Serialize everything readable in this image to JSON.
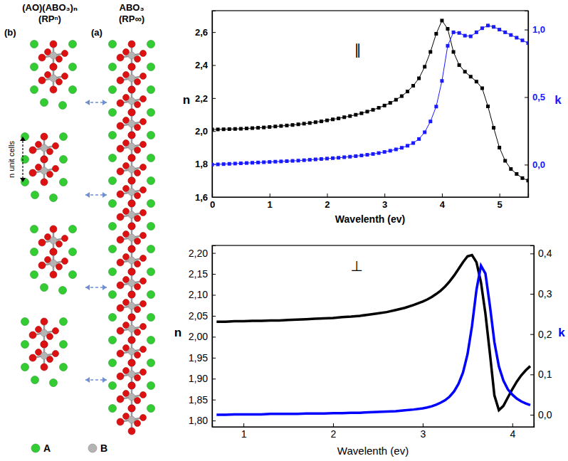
{
  "diagram": {
    "columns": [
      {
        "letter": "(b)",
        "formula": "(AO)(ABO₃)ₙ",
        "label": "(RPⁿ)"
      },
      {
        "letter": "(a)",
        "formula": "ABO₃",
        "label": "(RP∞)"
      }
    ],
    "span_label": "n unit cells",
    "legend": [
      {
        "name": "A",
        "color": "#33cc33"
      },
      {
        "name": "B",
        "color": "#b4b4b4"
      }
    ]
  },
  "chart_data": [
    {
      "type": "line",
      "annotations": [
        "∥"
      ],
      "x_label": "Wavelenth (ev)",
      "y_label": "n",
      "y2_label": "k",
      "x": [
        0,
        0.1,
        0.2,
        0.3,
        0.4,
        0.5,
        0.6,
        0.7,
        0.8,
        0.9,
        1.0,
        1.1,
        1.2,
        1.3,
        1.4,
        1.5,
        1.6,
        1.7,
        1.8,
        1.9,
        2.0,
        2.1,
        2.2,
        2.3,
        2.4,
        2.5,
        2.6,
        2.7,
        2.8,
        2.9,
        3.0,
        3.1,
        3.2,
        3.3,
        3.4,
        3.5,
        3.6,
        3.7,
        3.8,
        3.9,
        4.0,
        4.1,
        4.2,
        4.3,
        4.4,
        4.5,
        4.6,
        4.7,
        4.8,
        4.9,
        5.0,
        5.1,
        5.2,
        5.3,
        5.4,
        5.5
      ],
      "xlim": [
        0,
        5.5
      ],
      "xticks": [
        0,
        1,
        2,
        3,
        4,
        5
      ],
      "ylim": [
        1.6,
        2.73
      ],
      "yticks": [
        {
          "value": 1.6,
          "label": "1,6"
        },
        {
          "value": 1.8,
          "label": "1,8"
        },
        {
          "value": 2.0,
          "label": "2,0"
        },
        {
          "value": 2.2,
          "label": "2,2"
        },
        {
          "value": 2.4,
          "label": "2,4"
        },
        {
          "value": 2.6,
          "label": "2,6"
        }
      ],
      "y2lim": [
        -0.24,
        1.14
      ],
      "y2ticks": [
        {
          "value": 0,
          "label": "0,0"
        },
        {
          "value": 0.5,
          "label": "0,5"
        },
        {
          "value": 1.0,
          "label": "1,0"
        }
      ],
      "series": [
        {
          "color": "#000000",
          "marker": "square",
          "values": [
            2.01,
            2.01,
            2.011,
            2.012,
            2.013,
            2.014,
            2.016,
            2.018,
            2.02,
            2.022,
            2.025,
            2.028,
            2.031,
            2.034,
            2.037,
            2.041,
            2.045,
            2.049,
            2.054,
            2.059,
            2.065,
            2.071,
            2.077,
            2.084,
            2.091,
            2.099,
            2.108,
            2.118,
            2.129,
            2.141,
            2.155,
            2.171,
            2.19,
            2.212,
            2.24,
            2.275,
            2.32,
            2.39,
            2.48,
            2.59,
            2.67,
            2.62,
            2.48,
            2.4,
            2.36,
            2.33,
            2.3,
            2.26,
            2.15,
            2.02,
            1.9,
            1.82,
            1.77,
            1.74,
            1.715,
            1.7
          ]
        },
        {
          "color": "#1a1aff",
          "marker": "square",
          "axis": "y2",
          "values": [
            0.0,
            0.002,
            0.004,
            0.006,
            0.008,
            0.01,
            0.012,
            0.014,
            0.016,
            0.018,
            0.02,
            0.022,
            0.024,
            0.026,
            0.028,
            0.03,
            0.033,
            0.036,
            0.039,
            0.042,
            0.045,
            0.048,
            0.051,
            0.055,
            0.059,
            0.063,
            0.068,
            0.073,
            0.079,
            0.086,
            0.094,
            0.103,
            0.113,
            0.125,
            0.14,
            0.16,
            0.19,
            0.24,
            0.32,
            0.43,
            0.62,
            0.88,
            0.98,
            0.975,
            0.955,
            0.95,
            0.98,
            1.01,
            1.03,
            1.02,
            1.0,
            0.98,
            0.96,
            0.94,
            0.92,
            0.9
          ]
        }
      ]
    },
    {
      "type": "line",
      "annotations": [
        "⊥"
      ],
      "x_label": "Wavelenth (ev)",
      "y_label": "n",
      "y2_label": "k",
      "x": [
        0.7,
        0.8,
        0.9,
        1.0,
        1.1,
        1.2,
        1.3,
        1.4,
        1.5,
        1.6,
        1.7,
        1.8,
        1.9,
        2.0,
        2.1,
        2.2,
        2.3,
        2.4,
        2.5,
        2.6,
        2.7,
        2.8,
        2.9,
        3.0,
        3.05,
        3.1,
        3.15,
        3.2,
        3.25,
        3.3,
        3.35,
        3.4,
        3.45,
        3.5,
        3.55,
        3.6,
        3.65,
        3.7,
        3.75,
        3.8,
        3.85,
        3.9,
        3.95,
        4.0,
        4.05,
        4.1,
        4.15,
        4.2
      ],
      "xlim": [
        0.65,
        4.24
      ],
      "xticks": [
        1,
        2,
        3,
        4
      ],
      "ylim": [
        1.785,
        2.218
      ],
      "yticks": [
        {
          "value": 1.8,
          "label": "1,80"
        },
        {
          "value": 1.85,
          "label": "1,85"
        },
        {
          "value": 1.9,
          "label": "1,90"
        },
        {
          "value": 1.95,
          "label": "1,95"
        },
        {
          "value": 2.0,
          "label": "2,00"
        },
        {
          "value": 2.05,
          "label": "2,05"
        },
        {
          "value": 2.1,
          "label": "2,10"
        },
        {
          "value": 2.15,
          "label": "2,15"
        },
        {
          "value": 2.2,
          "label": "2,20"
        }
      ],
      "y2lim": [
        -0.03,
        0.42
      ],
      "y2ticks": [
        {
          "value": 0,
          "label": "0,0"
        },
        {
          "value": 0.1,
          "label": "0,1"
        },
        {
          "value": 0.2,
          "label": "0,2"
        },
        {
          "value": 0.3,
          "label": "0,3"
        },
        {
          "value": 0.4,
          "label": "0,4"
        }
      ],
      "series": [
        {
          "color": "#000000",
          "line_style": "solid",
          "values": [
            2.036,
            2.036,
            2.037,
            2.037,
            2.038,
            2.038,
            2.039,
            2.039,
            2.04,
            2.041,
            2.042,
            2.043,
            2.044,
            2.045,
            2.047,
            2.048,
            2.05,
            2.053,
            2.056,
            2.059,
            2.064,
            2.069,
            2.076,
            2.084,
            2.089,
            2.095,
            2.102,
            2.11,
            2.12,
            2.132,
            2.146,
            2.162,
            2.178,
            2.192,
            2.195,
            2.178,
            2.13,
            2.055,
            1.96,
            1.86,
            1.825,
            1.835,
            1.855,
            1.875,
            1.893,
            1.908,
            1.92,
            1.93
          ]
        },
        {
          "color": "#0000ff",
          "line_style": "solid",
          "axis": "y2",
          "values": [
            0.0,
            0.0,
            0.001,
            0.001,
            0.001,
            0.001,
            0.002,
            0.002,
            0.002,
            0.002,
            0.003,
            0.003,
            0.003,
            0.004,
            0.004,
            0.005,
            0.005,
            0.006,
            0.007,
            0.008,
            0.009,
            0.011,
            0.013,
            0.016,
            0.018,
            0.021,
            0.025,
            0.03,
            0.036,
            0.045,
            0.058,
            0.077,
            0.105,
            0.15,
            0.22,
            0.31,
            0.37,
            0.35,
            0.27,
            0.18,
            0.12,
            0.085,
            0.063,
            0.05,
            0.04,
            0.033,
            0.028,
            0.024
          ]
        }
      ]
    }
  ]
}
